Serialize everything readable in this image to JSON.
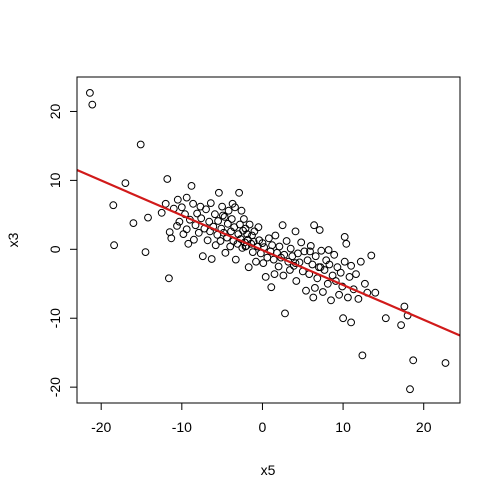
{
  "chart_data": {
    "type": "scatter",
    "title": "",
    "xlabel": "x5",
    "ylabel": "x3",
    "xlim": [
      -23.0,
      24.5
    ],
    "ylim": [
      -22.3,
      25.0
    ],
    "xticks": [
      -20,
      -10,
      0,
      10,
      20
    ],
    "yticks": [
      -20,
      -10,
      0,
      10,
      20
    ],
    "grid": false,
    "point_color": "#000000",
    "line_color": "#d11a1a",
    "regression_line": {
      "x": [
        -23.0,
        24.5
      ],
      "y": [
        11.5,
        -12.5
      ]
    },
    "points": [
      [
        -21.4,
        22.7
      ],
      [
        -21.1,
        21.0
      ],
      [
        -18.5,
        6.4
      ],
      [
        -18.4,
        0.6
      ],
      [
        -17.0,
        9.6
      ],
      [
        -16.0,
        3.8
      ],
      [
        -15.1,
        15.2
      ],
      [
        -14.5,
        -0.4
      ],
      [
        -14.2,
        4.6
      ],
      [
        -12.5,
        5.3
      ],
      [
        -12.0,
        6.6
      ],
      [
        -11.8,
        10.2
      ],
      [
        -11.6,
        -4.2
      ],
      [
        -11.3,
        1.6
      ],
      [
        -11.0,
        5.9
      ],
      [
        -10.6,
        3.4
      ],
      [
        -10.5,
        7.2
      ],
      [
        -10.3,
        4.0
      ],
      [
        -10.0,
        6.1
      ],
      [
        -9.8,
        2.2
      ],
      [
        -9.6,
        5.1
      ],
      [
        -9.4,
        7.5
      ],
      [
        -9.2,
        0.8
      ],
      [
        -9.0,
        4.3
      ],
      [
        -8.8,
        9.2
      ],
      [
        -8.6,
        6.6
      ],
      [
        -8.5,
        1.4
      ],
      [
        -8.3,
        3.5
      ],
      [
        -8.1,
        5.2
      ],
      [
        -7.9,
        2.4
      ],
      [
        -7.7,
        6.2
      ],
      [
        -7.6,
        4.5
      ],
      [
        -7.4,
        -1.0
      ],
      [
        -7.2,
        3.0
      ],
      [
        -7.0,
        5.8
      ],
      [
        -6.8,
        1.3
      ],
      [
        -6.6,
        4.0
      ],
      [
        -6.5,
        2.6
      ],
      [
        -6.4,
        6.7
      ],
      [
        -6.3,
        -1.4
      ],
      [
        -6.1,
        3.3
      ],
      [
        -5.9,
        5.1
      ],
      [
        -5.8,
        0.6
      ],
      [
        -5.6,
        2.1
      ],
      [
        -5.5,
        4.1
      ],
      [
        -5.4,
        8.2
      ],
      [
        -5.2,
        1.2
      ],
      [
        -5.1,
        3.0
      ],
      [
        -5.0,
        6.2
      ],
      [
        -4.8,
        2.4
      ],
      [
        -4.7,
        4.7
      ],
      [
        -4.6,
        -0.5
      ],
      [
        -4.4,
        1.7
      ],
      [
        -4.3,
        3.7
      ],
      [
        -4.2,
        5.6
      ],
      [
        -4.0,
        0.4
      ],
      [
        -3.9,
        2.6
      ],
      [
        -3.8,
        4.4
      ],
      [
        -3.6,
        1.2
      ],
      [
        -3.5,
        3.2
      ],
      [
        -3.4,
        6.1
      ],
      [
        -3.3,
        -1.5
      ],
      [
        -3.1,
        0.8
      ],
      [
        -3.0,
        2.2
      ],
      [
        -2.9,
        8.2
      ],
      [
        -2.8,
        3.6
      ],
      [
        -2.7,
        1.5
      ],
      [
        -2.6,
        5.6
      ],
      [
        -2.5,
        0.2
      ],
      [
        -2.4,
        2.7
      ],
      [
        -2.3,
        4.4
      ],
      [
        -2.2,
        1.0
      ],
      [
        -2.1,
        3.0
      ],
      [
        -2.0,
        0.5
      ],
      [
        -1.9,
        2.2
      ],
      [
        -1.8,
        1.4
      ],
      [
        -1.7,
        -2.6
      ],
      [
        -1.6,
        3.6
      ],
      [
        -1.4,
        0.8
      ],
      [
        -1.3,
        2.0
      ],
      [
        -1.2,
        -0.4
      ],
      [
        -1.1,
        1.1
      ],
      [
        -1.0,
        2.6
      ],
      [
        -0.8,
        -1.8
      ],
      [
        -0.6,
        0.4
      ],
      [
        -0.4,
        1.3
      ],
      [
        -0.2,
        -0.6
      ],
      [
        0.0,
        0.9
      ],
      [
        0.1,
        -2.0
      ],
      [
        0.2,
        0.3
      ],
      [
        0.4,
        -4.0
      ],
      [
        0.6,
        -1.2
      ],
      [
        0.8,
        1.6
      ],
      [
        1.0,
        -0.3
      ],
      [
        1.1,
        -5.5
      ],
      [
        1.2,
        0.6
      ],
      [
        1.4,
        -1.5
      ],
      [
        1.6,
        2.0
      ],
      [
        1.8,
        -0.5
      ],
      [
        2.0,
        -2.5
      ],
      [
        2.1,
        0.4
      ],
      [
        2.3,
        -1.2
      ],
      [
        2.5,
        3.5
      ],
      [
        2.6,
        -3.8
      ],
      [
        2.7,
        -0.8
      ],
      [
        2.8,
        -9.3
      ],
      [
        3.0,
        1.2
      ],
      [
        3.2,
        -1.8
      ],
      [
        3.4,
        -3.0
      ],
      [
        3.5,
        0.1
      ],
      [
        3.7,
        -1.0
      ],
      [
        3.9,
        -2.4
      ],
      [
        4.1,
        2.6
      ],
      [
        4.2,
        -4.6
      ],
      [
        4.4,
        -0.6
      ],
      [
        4.6,
        -1.9
      ],
      [
        4.8,
        1.0
      ],
      [
        5.0,
        -3.2
      ],
      [
        5.2,
        -0.3
      ],
      [
        5.4,
        -6.0
      ],
      [
        5.6,
        -1.6
      ],
      [
        5.8,
        -3.6
      ],
      [
        6.0,
        0.5
      ],
      [
        6.2,
        -2.2
      ],
      [
        6.3,
        -7.0
      ],
      [
        6.4,
        3.5
      ],
      [
        6.6,
        -1.0
      ],
      [
        6.8,
        -4.2
      ],
      [
        7.0,
        -2.6
      ],
      [
        7.1,
        2.8
      ],
      [
        7.3,
        -0.2
      ],
      [
        7.5,
        -6.2
      ],
      [
        7.7,
        -3.0
      ],
      [
        7.9,
        -1.6
      ],
      [
        8.1,
        -5.0
      ],
      [
        8.3,
        -2.2
      ],
      [
        8.5,
        -7.4
      ],
      [
        8.7,
        -3.8
      ],
      [
        8.9,
        -0.8
      ],
      [
        9.1,
        -4.6
      ],
      [
        9.3,
        -2.6
      ],
      [
        9.5,
        -6.6
      ],
      [
        9.7,
        -3.4
      ],
      [
        9.9,
        -5.4
      ],
      [
        10.0,
        -10.0
      ],
      [
        10.2,
        -1.8
      ],
      [
        10.4,
        0.8
      ],
      [
        10.6,
        -7.0
      ],
      [
        10.8,
        -4.0
      ],
      [
        11.0,
        -2.4
      ],
      [
        11.3,
        -5.8
      ],
      [
        11.6,
        -3.6
      ],
      [
        11.9,
        -7.2
      ],
      [
        12.2,
        -1.8
      ],
      [
        12.4,
        -15.4
      ],
      [
        12.7,
        -5.0
      ],
      [
        13.0,
        -6.3
      ],
      [
        13.5,
        -0.9
      ],
      [
        14.0,
        -6.3
      ],
      [
        15.3,
        -10.0
      ],
      [
        17.2,
        -11.0
      ],
      [
        17.6,
        -8.3
      ],
      [
        18.0,
        -9.6
      ],
      [
        18.3,
        -20.3
      ],
      [
        18.7,
        -16.1
      ],
      [
        22.7,
        -16.5
      ],
      [
        10.2,
        1.8
      ],
      [
        7.2,
        -2.6
      ],
      [
        5.9,
        -0.3
      ],
      [
        4.1,
        -2.0
      ],
      [
        -2.1,
        0.4
      ],
      [
        -0.5,
        3.2
      ],
      [
        1.5,
        -3.6
      ],
      [
        8.2,
        -0.1
      ],
      [
        -4.9,
        4.9
      ],
      [
        -3.7,
        6.6
      ],
      [
        -9.4,
        2.9
      ],
      [
        -11.5,
        2.5
      ],
      [
        6.5,
        -5.6
      ],
      [
        11.0,
        -10.6
      ]
    ]
  }
}
